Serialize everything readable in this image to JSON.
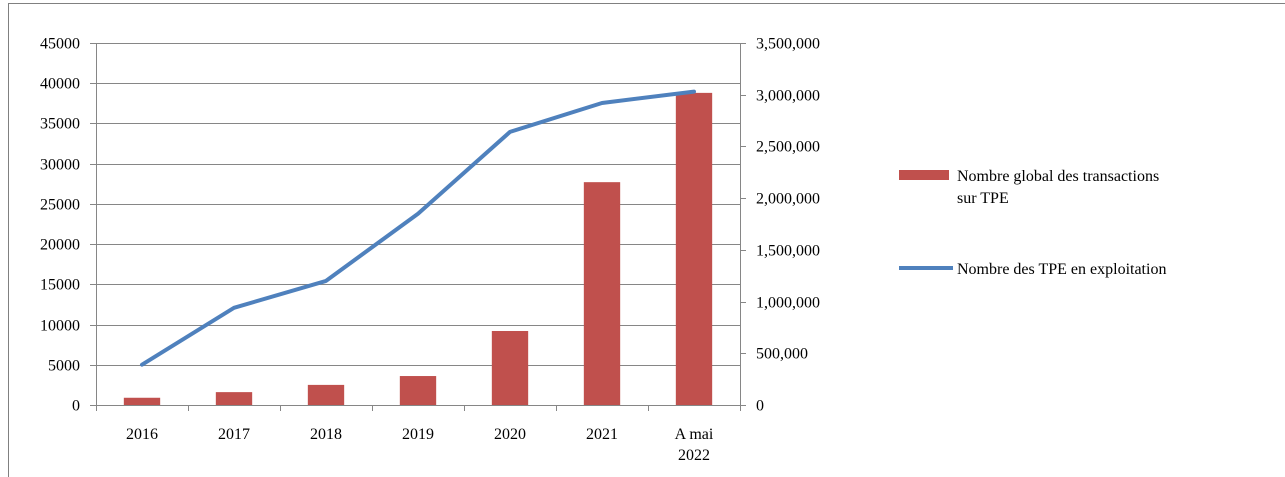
{
  "chart_data": {
    "type": "bar",
    "categories": [
      [
        "2016"
      ],
      [
        "2017"
      ],
      [
        "2018"
      ],
      [
        "2019"
      ],
      [
        "2020"
      ],
      [
        "2021"
      ],
      [
        "A mai",
        "2022"
      ]
    ],
    "series": [
      {
        "name": "Nombre global des transactions sur TPE",
        "legend_lines": [
          "Nombre global des transactions",
          "sur TPE"
        ],
        "type": "bar",
        "axis": "left",
        "color": "#C0504D",
        "values": [
          900,
          1600,
          2500,
          3600,
          9200,
          27700,
          38800
        ]
      },
      {
        "name": "Nombre des TPE en exploitation",
        "type": "line",
        "axis": "right",
        "color": "#4F81BD",
        "values": [
          390000,
          940000,
          1200000,
          1850000,
          2640000,
          2920000,
          3030000
        ]
      }
    ],
    "y_left": {
      "min": 0,
      "max": 45000,
      "ticks": [
        "0",
        "5000",
        "10000",
        "15000",
        "20000",
        "25000",
        "30000",
        "35000",
        "40000",
        "45000"
      ]
    },
    "y_right": {
      "min": 0,
      "max": 3500000,
      "ticks": [
        "0",
        "500,000",
        "1,000,000",
        "1,500,000",
        "2,000,000",
        "2,500,000",
        "3,000,000",
        "3,500,000"
      ]
    },
    "grid": true,
    "legend_position": "right"
  }
}
